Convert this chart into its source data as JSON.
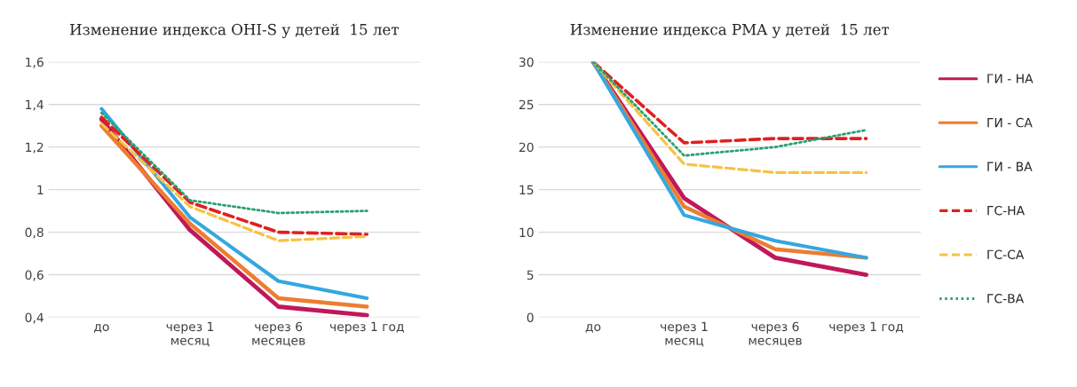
{
  "chart_data": [
    {
      "type": "line",
      "title": "Изменение индекса OHI-S у детей  15 лет",
      "categories": [
        "до",
        "через 1\nмесяц",
        "через 6\nмесяцев",
        "через 1 год"
      ],
      "ylim": [
        0.4,
        1.6
      ],
      "yticks": [
        {
          "value": 0.4,
          "label": "0,4"
        },
        {
          "value": 0.6,
          "label": "0,6"
        },
        {
          "value": 0.8,
          "label": "0,8"
        },
        1,
        {
          "value": 1.2,
          "label": "1,2"
        },
        {
          "value": 1.4,
          "label": "1,4"
        },
        {
          "value": 1.6,
          "label": "1,6"
        }
      ],
      "grid": "y",
      "series": [
        {
          "color": "#c0185a",
          "line_style": "solid",
          "values": [
            1.33,
            0.81,
            0.45,
            0.41
          ]
        },
        {
          "color": "#ed7d31",
          "line_style": "solid",
          "values": [
            1.3,
            0.84,
            0.49,
            0.45
          ]
        },
        {
          "color": "#35a7e0",
          "line_style": "solid",
          "values": [
            1.38,
            0.87,
            0.57,
            0.49
          ]
        },
        {
          "color": "#e02020",
          "line_style": "dashed",
          "values": [
            1.34,
            0.94,
            0.8,
            0.79
          ]
        },
        {
          "color": "#f5c242",
          "line_style": "dashed",
          "values": [
            1.31,
            0.92,
            0.76,
            0.78
          ]
        },
        {
          "color": "#2aa070",
          "line_style": "dotted",
          "values": [
            1.36,
            0.95,
            0.89,
            0.9
          ]
        }
      ]
    },
    {
      "type": "line",
      "title": "Изменение индекса PMA у детей  15 лет",
      "categories": [
        "до",
        "через 1\nмесяц",
        "через 6\nмесяцев",
        "через 1 год"
      ],
      "ylim": [
        0,
        30
      ],
      "yticks": [
        0,
        5,
        10,
        15,
        20,
        25,
        30
      ],
      "grid": "y",
      "legend": "right",
      "series": [
        {
          "name": "ГИ - НА",
          "color": "#c0185a",
          "line_style": "solid",
          "values": [
            30,
            14,
            7,
            5
          ]
        },
        {
          "name": "ГИ - СА",
          "color": "#ed7d31",
          "line_style": "solid",
          "values": [
            30,
            13,
            8,
            7
          ]
        },
        {
          "name": "ГИ - ВА",
          "color": "#35a7e0",
          "line_style": "solid",
          "values": [
            30,
            12,
            9,
            7
          ]
        },
        {
          "name": "ГС-НА",
          "color": "#e02020",
          "line_style": "dashed",
          "values": [
            30,
            20.5,
            21,
            21
          ]
        },
        {
          "name": "ГС-СА",
          "color": "#f5c242",
          "line_style": "dashed",
          "values": [
            30,
            18,
            17,
            17
          ]
        },
        {
          "name": "ГС-ВА",
          "color": "#2aa070",
          "line_style": "dotted",
          "values": [
            30,
            19,
            20,
            22
          ]
        }
      ]
    }
  ]
}
